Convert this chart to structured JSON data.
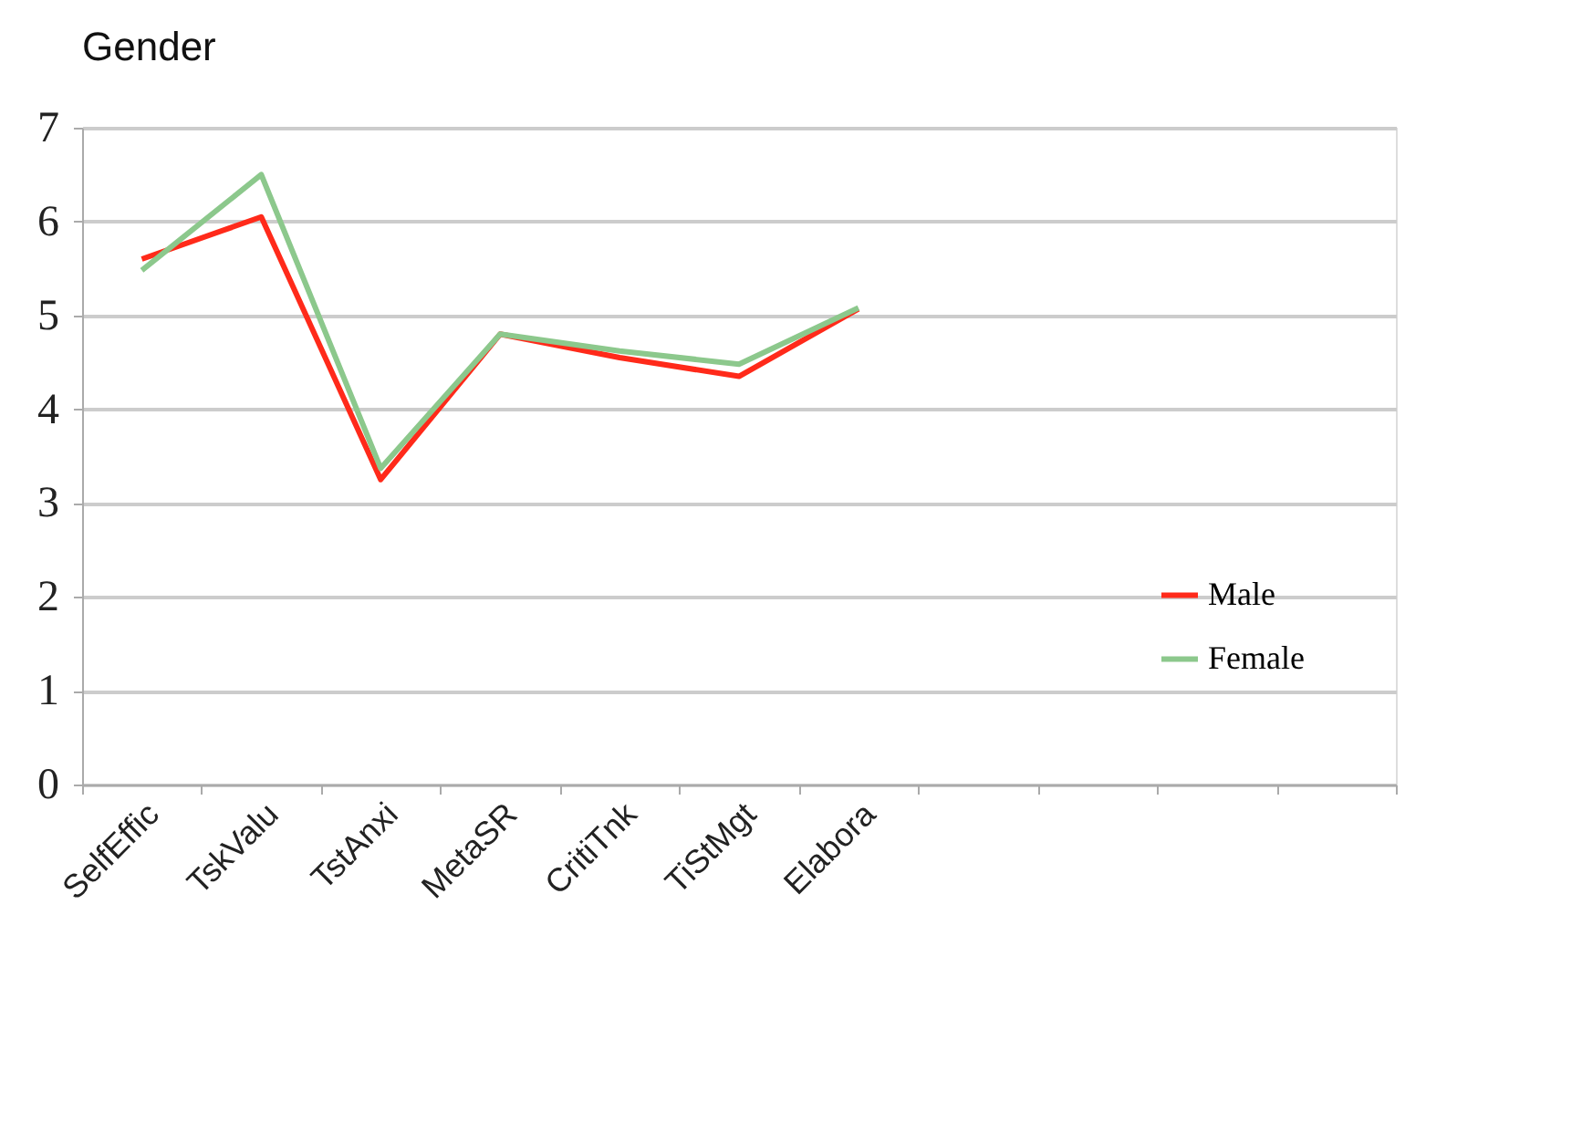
{
  "chart_data": {
    "type": "line",
    "title": "Gender",
    "categories": [
      "SelfEffic",
      "TskValu",
      "TstAnxi",
      "MetaSR",
      "CritiTnk",
      "TiStMgt",
      "Elabora",
      null,
      null,
      null,
      null
    ],
    "series": [
      {
        "name": "Male",
        "color": "#ff2a1a",
        "values": [
          5.6,
          6.05,
          3.25,
          4.8,
          4.55,
          4.35,
          5.07,
          null,
          null,
          null,
          null
        ]
      },
      {
        "name": "Female",
        "color": "#8cc88c",
        "values": [
          5.48,
          6.5,
          3.37,
          4.8,
          4.62,
          4.48,
          5.08,
          null,
          null,
          null,
          null
        ]
      }
    ],
    "ylim": [
      0,
      7
    ],
    "yticks": [
      0,
      1,
      2,
      3,
      4,
      5,
      6,
      7
    ],
    "grid": "y",
    "legend": "right",
    "marker": "none",
    "line_style": "solid"
  }
}
